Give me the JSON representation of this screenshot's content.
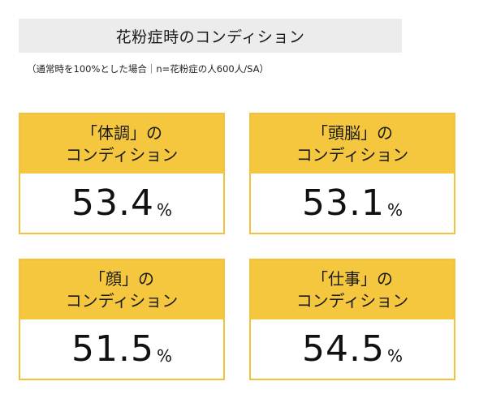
{
  "title": "花粉症時のコンディション",
  "note": "（通常時を100%とした場合｜n=花粉症の人600人/SA）",
  "cards": [
    {
      "label_line1": "「体調」の",
      "label_line2": "コンディション",
      "value": "53.4",
      "unit": "%"
    },
    {
      "label_line1": "「頭脳」の",
      "label_line2": "コンディション",
      "value": "53.1",
      "unit": "%"
    },
    {
      "label_line1": "「顔」の",
      "label_line2": "コンディション",
      "value": "51.5",
      "unit": "%"
    },
    {
      "label_line1": "「仕事」の",
      "label_line2": "コンディション",
      "value": "54.5",
      "unit": "%"
    }
  ],
  "colors": {
    "header_bg": "#f4c73f",
    "title_bg": "#ececec",
    "border": "#f2c23c"
  }
}
